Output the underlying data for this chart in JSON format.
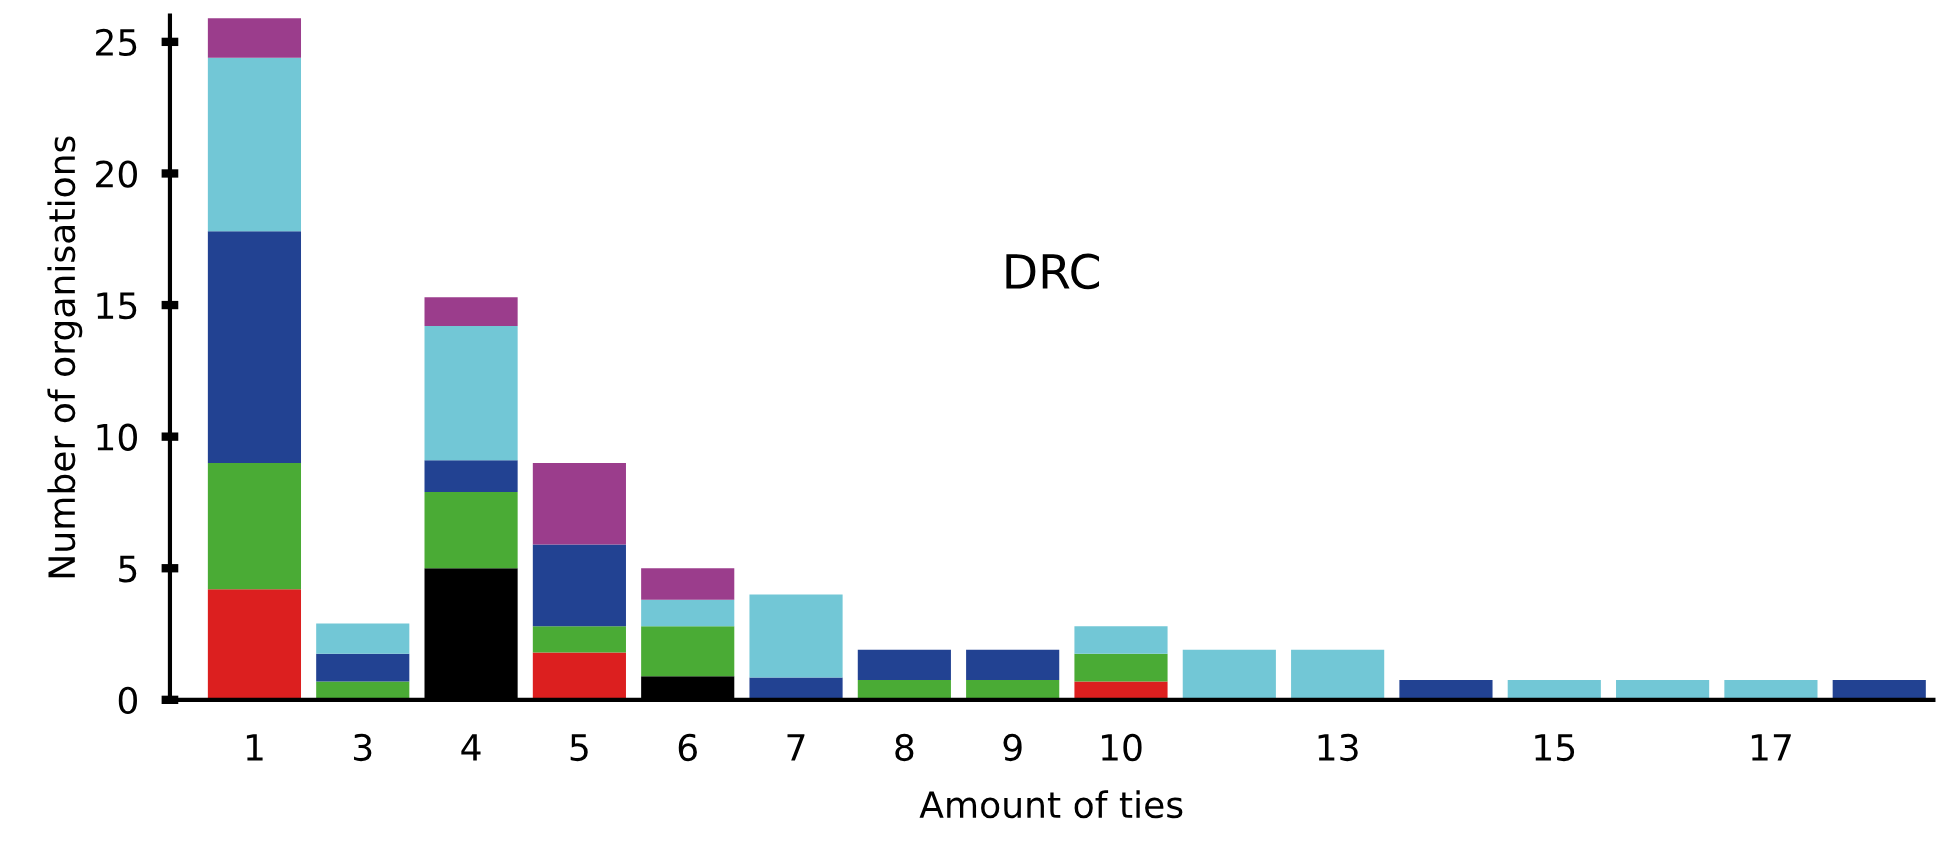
{
  "chart_data": {
    "type": "bar",
    "stacked": true,
    "xlabel": "Amount of ties",
    "ylabel": "Number of organisations",
    "annotations": [
      "DRC"
    ],
    "categories": [
      "1",
      "3",
      "4",
      "5",
      "6",
      "7",
      "8",
      "9",
      "10",
      null,
      "13",
      null,
      "15",
      null,
      "17",
      null
    ],
    "series": [
      {
        "color": "#000000",
        "values": [
          0,
          0,
          5.0,
          0,
          0.9,
          0,
          0,
          0,
          0,
          0,
          0,
          0,
          0,
          0,
          0,
          0
        ]
      },
      {
        "color": "#dc1f1f",
        "values": [
          4.2,
          0,
          0,
          1.8,
          0,
          0,
          0,
          0,
          0.7,
          0,
          0,
          0,
          0,
          0,
          0,
          0
        ]
      },
      {
        "color": "#4aab35",
        "values": [
          4.8,
          0.7,
          2.9,
          1.0,
          1.9,
          0,
          0.75,
          0.75,
          1.05,
          0,
          0,
          0,
          0,
          0,
          0,
          0
        ]
      },
      {
        "color": "#224292",
        "values": [
          8.8,
          1.05,
          1.2,
          3.1,
          0,
          0.85,
          1.15,
          1.15,
          0,
          0,
          0,
          0.75,
          0,
          0,
          0,
          0.75
        ]
      },
      {
        "color": "#72c7d6",
        "values": [
          6.6,
          1.15,
          5.1,
          0,
          1.0,
          3.15,
          0,
          0,
          1.05,
          1.9,
          1.9,
          0,
          0.75,
          0.75,
          0.75,
          0
        ]
      },
      {
        "color": "#9b3d8c",
        "values": [
          1.5,
          0,
          1.1,
          3.1,
          1.2,
          0,
          0,
          0,
          0,
          0,
          0,
          0,
          0,
          0,
          0,
          0
        ]
      }
    ],
    "ylim": [
      0,
      26
    ],
    "yticks": [
      0,
      5,
      10,
      15,
      20,
      25
    ],
    "grid": false,
    "legend": false
  }
}
